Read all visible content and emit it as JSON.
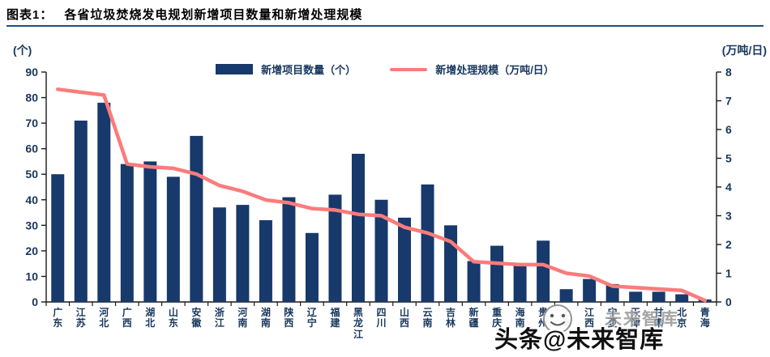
{
  "header": {
    "figure_label": "图表1：",
    "title": "各省垃圾焚烧发电规划新增项目数量和新增处理规模"
  },
  "units": {
    "left": "(个)",
    "right": "(万吨/日)"
  },
  "legend": {
    "bar_label": "新增项目数量（个）",
    "line_label": "新增处理规模（万吨/日）"
  },
  "watermark": {
    "ghost_text": "未来智库",
    "text": "头条@未来智库"
  },
  "colors": {
    "bar": "#17396B",
    "line": "#FC7B7B",
    "axis": "#1a1a1a",
    "axis_text": "#17375D",
    "title_rule": "#1F4E79"
  },
  "chart_data": {
    "type": "bar",
    "title": "各省垃圾焚烧发电规划新增项目数量和新增处理规模",
    "categories": [
      "广东",
      "江苏",
      "河北",
      "广西",
      "湖北",
      "山东",
      "安徽",
      "浙江",
      "河南",
      "湖南",
      "陕西",
      "辽宁",
      "福建",
      "黑龙江",
      "四川",
      "山西",
      "云南",
      "吉林",
      "新疆",
      "重庆",
      "海南",
      "贵州",
      "上海",
      "江西",
      "宁夏",
      "天津",
      "甘肃",
      "北京",
      "青海"
    ],
    "series": [
      {
        "name": "新增项目数量（个）",
        "type": "bar",
        "axis": "left",
        "values": [
          50,
          71,
          78,
          54,
          55,
          49,
          65,
          37,
          38,
          32,
          41,
          27,
          42,
          58,
          40,
          33,
          46,
          30,
          16,
          22,
          15,
          24,
          5,
          9,
          7,
          4,
          4,
          3,
          1
        ]
      },
      {
        "name": "新增处理规模（万吨/日）",
        "type": "line",
        "axis": "right",
        "values": [
          7.4,
          7.3,
          7.2,
          4.8,
          4.7,
          4.65,
          4.45,
          4.05,
          3.85,
          3.55,
          3.45,
          3.25,
          3.2,
          3.05,
          3.0,
          2.6,
          2.4,
          2.1,
          1.4,
          1.35,
          1.3,
          1.3,
          1.0,
          0.9,
          0.55,
          0.5,
          0.45,
          0.4,
          0.05
        ]
      }
    ],
    "y_left": {
      "label": "(个)",
      "min": 0,
      "max": 90,
      "step": 10,
      "ticks": [
        0,
        10,
        20,
        30,
        40,
        50,
        60,
        70,
        80,
        90
      ]
    },
    "y_right": {
      "label": "(万吨/日)",
      "min": 0,
      "max": 8,
      "step": 1,
      "ticks": [
        0,
        1,
        2,
        3,
        4,
        5,
        6,
        7,
        8
      ]
    },
    "grid": false,
    "legend_position": "top"
  }
}
